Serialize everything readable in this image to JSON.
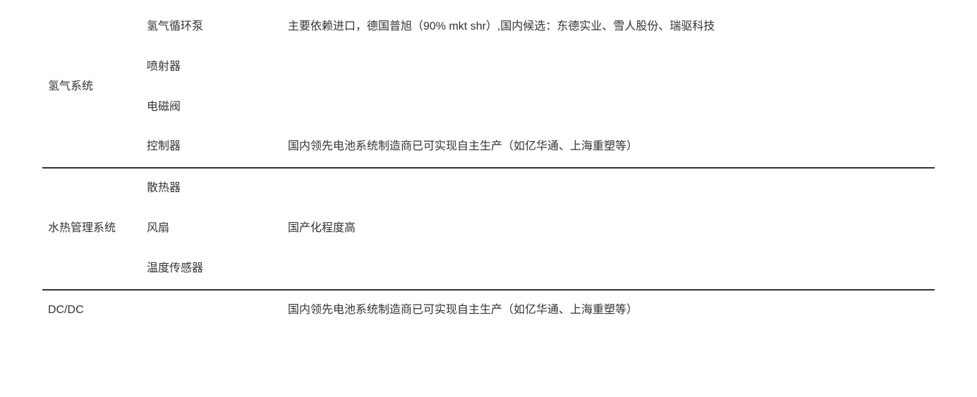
{
  "table": {
    "sections": [
      {
        "category": "氢气系统",
        "rows": [
          {
            "component": "氢气循环泵",
            "description": "主要依赖进口，德国普旭（90% mkt shr）,国内候选：东德实业、雪人股份、瑞驱科技"
          },
          {
            "component": "喷射器",
            "description": ""
          },
          {
            "component": "电磁阀",
            "description": ""
          },
          {
            "component": "控制器",
            "description": "国内领先电池系统制造商已可实现自主生产（如亿华通、上海重塑等）"
          }
        ]
      },
      {
        "category": "水热管理系统",
        "rows": [
          {
            "component": "散热器",
            "description": ""
          },
          {
            "component": "风扇",
            "description": "国产化程度高"
          },
          {
            "component": "温度传感器",
            "description": ""
          }
        ]
      },
      {
        "category": "DC/DC",
        "rows": [
          {
            "component": "",
            "description": "国内领先电池系统制造商已可实现自主生产（如亿华通、上海重塑等）"
          }
        ]
      }
    ]
  },
  "styling": {
    "font_size": 16,
    "text_color": "#333333",
    "background_color": "#ffffff",
    "border_color": "#333333",
    "border_width": 2,
    "line_height": 1.8,
    "col1_width": 140,
    "col2_width": 200
  }
}
